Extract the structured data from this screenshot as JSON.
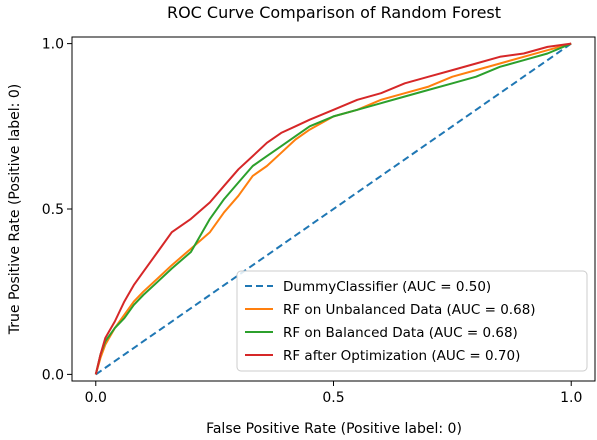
{
  "chart_data": {
    "type": "line",
    "title": "ROC Curve Comparison of Random Forest",
    "xlabel": "False Positive Rate (Positive label: 0)",
    "ylabel": "True Positive Rate (Positive label: 0)",
    "xlim": [
      -0.05,
      1.05
    ],
    "ylim": [
      -0.02,
      1.02
    ],
    "xticks": [
      0.0,
      0.5,
      1.0
    ],
    "xtick_labels": [
      "0.0",
      "0.5",
      "1.0"
    ],
    "yticks": [
      0.0,
      0.5,
      1.0
    ],
    "ytick_labels": [
      "0.0",
      "0.5",
      "1.0"
    ],
    "grid": false,
    "legend_position": "lower-right",
    "series": [
      {
        "name": "DummyClassifier (AUC = 0.50)",
        "color": "#1f77b4",
        "dashed": true,
        "x": [
          0,
          1
        ],
        "y": [
          0,
          1
        ]
      },
      {
        "name": "RF on Unbalanced Data (AUC = 0.68)",
        "color": "#ff7f0e",
        "dashed": false,
        "x": [
          0,
          0.01,
          0.02,
          0.04,
          0.06,
          0.08,
          0.1,
          0.13,
          0.16,
          0.2,
          0.24,
          0.27,
          0.3,
          0.33,
          0.36,
          0.39,
          0.42,
          0.45,
          0.5,
          0.55,
          0.6,
          0.65,
          0.7,
          0.75,
          0.8,
          0.85,
          0.9,
          0.95,
          1.0
        ],
        "y": [
          0,
          0.05,
          0.09,
          0.14,
          0.18,
          0.22,
          0.25,
          0.29,
          0.33,
          0.38,
          0.43,
          0.49,
          0.54,
          0.6,
          0.63,
          0.67,
          0.71,
          0.74,
          0.78,
          0.8,
          0.83,
          0.85,
          0.87,
          0.9,
          0.92,
          0.94,
          0.96,
          0.98,
          1.0
        ]
      },
      {
        "name": "RF on Balanced Data (AUC = 0.68)",
        "color": "#2ca02c",
        "dashed": false,
        "x": [
          0,
          0.01,
          0.02,
          0.04,
          0.06,
          0.08,
          0.1,
          0.13,
          0.16,
          0.2,
          0.24,
          0.27,
          0.3,
          0.33,
          0.36,
          0.39,
          0.42,
          0.45,
          0.5,
          0.55,
          0.6,
          0.65,
          0.7,
          0.75,
          0.8,
          0.85,
          0.9,
          0.95,
          1.0
        ],
        "y": [
          0,
          0.06,
          0.1,
          0.14,
          0.17,
          0.21,
          0.24,
          0.28,
          0.32,
          0.37,
          0.47,
          0.53,
          0.58,
          0.63,
          0.66,
          0.69,
          0.72,
          0.75,
          0.78,
          0.8,
          0.82,
          0.84,
          0.86,
          0.88,
          0.9,
          0.93,
          0.95,
          0.97,
          1.0
        ]
      },
      {
        "name": "RF after  Optimization (AUC = 0.70)",
        "color": "#d62728",
        "dashed": false,
        "x": [
          0,
          0.01,
          0.02,
          0.04,
          0.06,
          0.08,
          0.1,
          0.13,
          0.16,
          0.2,
          0.24,
          0.27,
          0.3,
          0.33,
          0.36,
          0.39,
          0.42,
          0.45,
          0.5,
          0.55,
          0.6,
          0.65,
          0.7,
          0.75,
          0.8,
          0.85,
          0.9,
          0.95,
          1.0
        ],
        "y": [
          0,
          0.06,
          0.11,
          0.16,
          0.22,
          0.27,
          0.31,
          0.37,
          0.43,
          0.47,
          0.52,
          0.57,
          0.62,
          0.66,
          0.7,
          0.73,
          0.75,
          0.77,
          0.8,
          0.83,
          0.85,
          0.88,
          0.9,
          0.92,
          0.94,
          0.96,
          0.97,
          0.99,
          1.0
        ]
      }
    ]
  }
}
